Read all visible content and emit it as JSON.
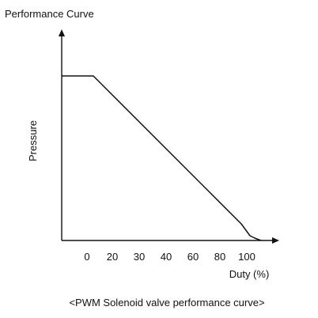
{
  "chart_data": {
    "type": "line",
    "title": "Performance Curve",
    "xlabel": "Duty (%)",
    "ylabel": "Pressure",
    "caption": "<PWM Solenoid valve performance curve>",
    "x_tick_labels": [
      "0",
      "20",
      "30",
      "40",
      "60",
      "80",
      "100"
    ],
    "series": [
      {
        "points": [
          {
            "x": "start",
            "y": "high"
          },
          {
            "x": "0",
            "y": "high"
          },
          {
            "x": "100",
            "y": "low"
          },
          {
            "x": "end",
            "y": "zero"
          }
        ]
      }
    ],
    "grid": false,
    "line_color": "#111111"
  }
}
